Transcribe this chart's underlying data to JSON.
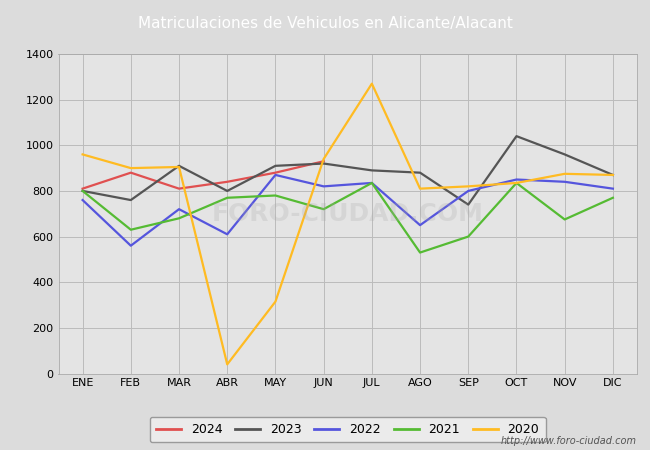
{
  "title": "Matriculaciones de Vehiculos en Alicante/Alacant",
  "title_color": "#ffffff",
  "title_bg_color": "#4f86c6",
  "months": [
    "ENE",
    "FEB",
    "MAR",
    "ABR",
    "MAY",
    "JUN",
    "JUL",
    "AGO",
    "SEP",
    "OCT",
    "NOV",
    "DIC"
  ],
  "series": {
    "2024": {
      "color": "#e05050",
      "data": [
        810,
        880,
        810,
        840,
        880,
        930,
        null,
        null,
        null,
        null,
        null,
        null
      ]
    },
    "2023": {
      "color": "#555555",
      "data": [
        800,
        760,
        910,
        800,
        910,
        920,
        890,
        880,
        740,
        1040,
        960,
        870
      ]
    },
    "2022": {
      "color": "#5555dd",
      "data": [
        760,
        560,
        720,
        610,
        870,
        820,
        835,
        650,
        800,
        850,
        840,
        810
      ]
    },
    "2021": {
      "color": "#55bb33",
      "data": [
        800,
        630,
        680,
        770,
        780,
        720,
        835,
        530,
        600,
        835,
        675,
        770
      ]
    },
    "2020": {
      "color": "#ffbb22",
      "data": [
        960,
        900,
        905,
        40,
        315,
        940,
        1270,
        810,
        820,
        835,
        875,
        870
      ]
    }
  },
  "ylim": [
    0,
    1400
  ],
  "yticks": [
    0,
    200,
    400,
    600,
    800,
    1000,
    1200,
    1400
  ],
  "grid_color": "#bbbbbb",
  "plot_bg_color": "#e4e4e4",
  "outer_bg_color": "#dcdcdc",
  "legend_order": [
    "2024",
    "2023",
    "2022",
    "2021",
    "2020"
  ],
  "watermark": "http://www.foro-ciudad.com",
  "line_width": 1.6
}
